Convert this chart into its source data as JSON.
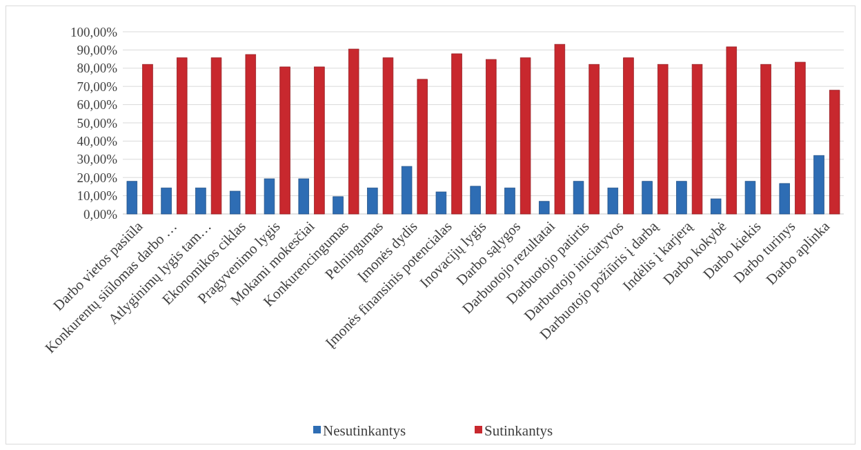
{
  "chart_data": {
    "type": "bar",
    "categories": [
      "Darbo vietos pasiūla",
      "Konkurentų siūlomas darbo …",
      "Atlyginimų lygis tam…",
      "Ekonomikos ciklas",
      "Pragyvenimo lygis",
      "Mokami mokesčiai",
      "Konkurencingumas",
      "Pelningumas",
      "Įmonės dydis",
      "Įmonės finansinis potencialas",
      "Inovacijų lygis",
      "Darbo sąlygos",
      "Darbuotojo rezultatai",
      "Darbuotojo patirtis",
      "Darbuotojo iniciatyvos",
      "Darbuotojo požiūris į darbą",
      "Indėlis į karjerą",
      "Darbo kokybė",
      "Darbo kiekis",
      "Darbo turinys",
      "Darbo aplinka"
    ],
    "series": [
      {
        "name": "Nesutinkantys",
        "color": "#2e6db4",
        "values": [
          17.9,
          14.3,
          14.3,
          12.5,
          19.3,
          19.3,
          9.5,
          14.3,
          26.1,
          12.1,
          15.2,
          14.3,
          6.9,
          17.9,
          14.3,
          17.9,
          17.9,
          8.3,
          17.9,
          16.7,
          32.1
        ]
      },
      {
        "name": "Sutinkantys",
        "color": "#c8282e",
        "values": [
          82.1,
          85.7,
          85.7,
          87.5,
          80.7,
          80.7,
          90.5,
          85.7,
          73.9,
          87.9,
          84.8,
          85.7,
          93.1,
          82.1,
          85.7,
          82.1,
          82.1,
          91.7,
          82.1,
          83.3,
          67.9
        ]
      }
    ],
    "ylim": [
      0,
      100
    ],
    "yticks": [
      {
        "value": 0,
        "label": "0,00%"
      },
      {
        "value": 10,
        "label": "10,00%"
      },
      {
        "value": 20,
        "label": "20,00%"
      },
      {
        "value": 30,
        "label": "30,00%"
      },
      {
        "value": 40,
        "label": "40,00%"
      },
      {
        "value": 50,
        "label": "50,00%"
      },
      {
        "value": 60,
        "label": "60,00%"
      },
      {
        "value": 70,
        "label": "70,00%"
      },
      {
        "value": 80,
        "label": "80,00%"
      },
      {
        "value": 90,
        "label": "90,00%"
      },
      {
        "value": 100,
        "label": "100,00%"
      }
    ],
    "grid": "y",
    "legend": "bottom"
  }
}
